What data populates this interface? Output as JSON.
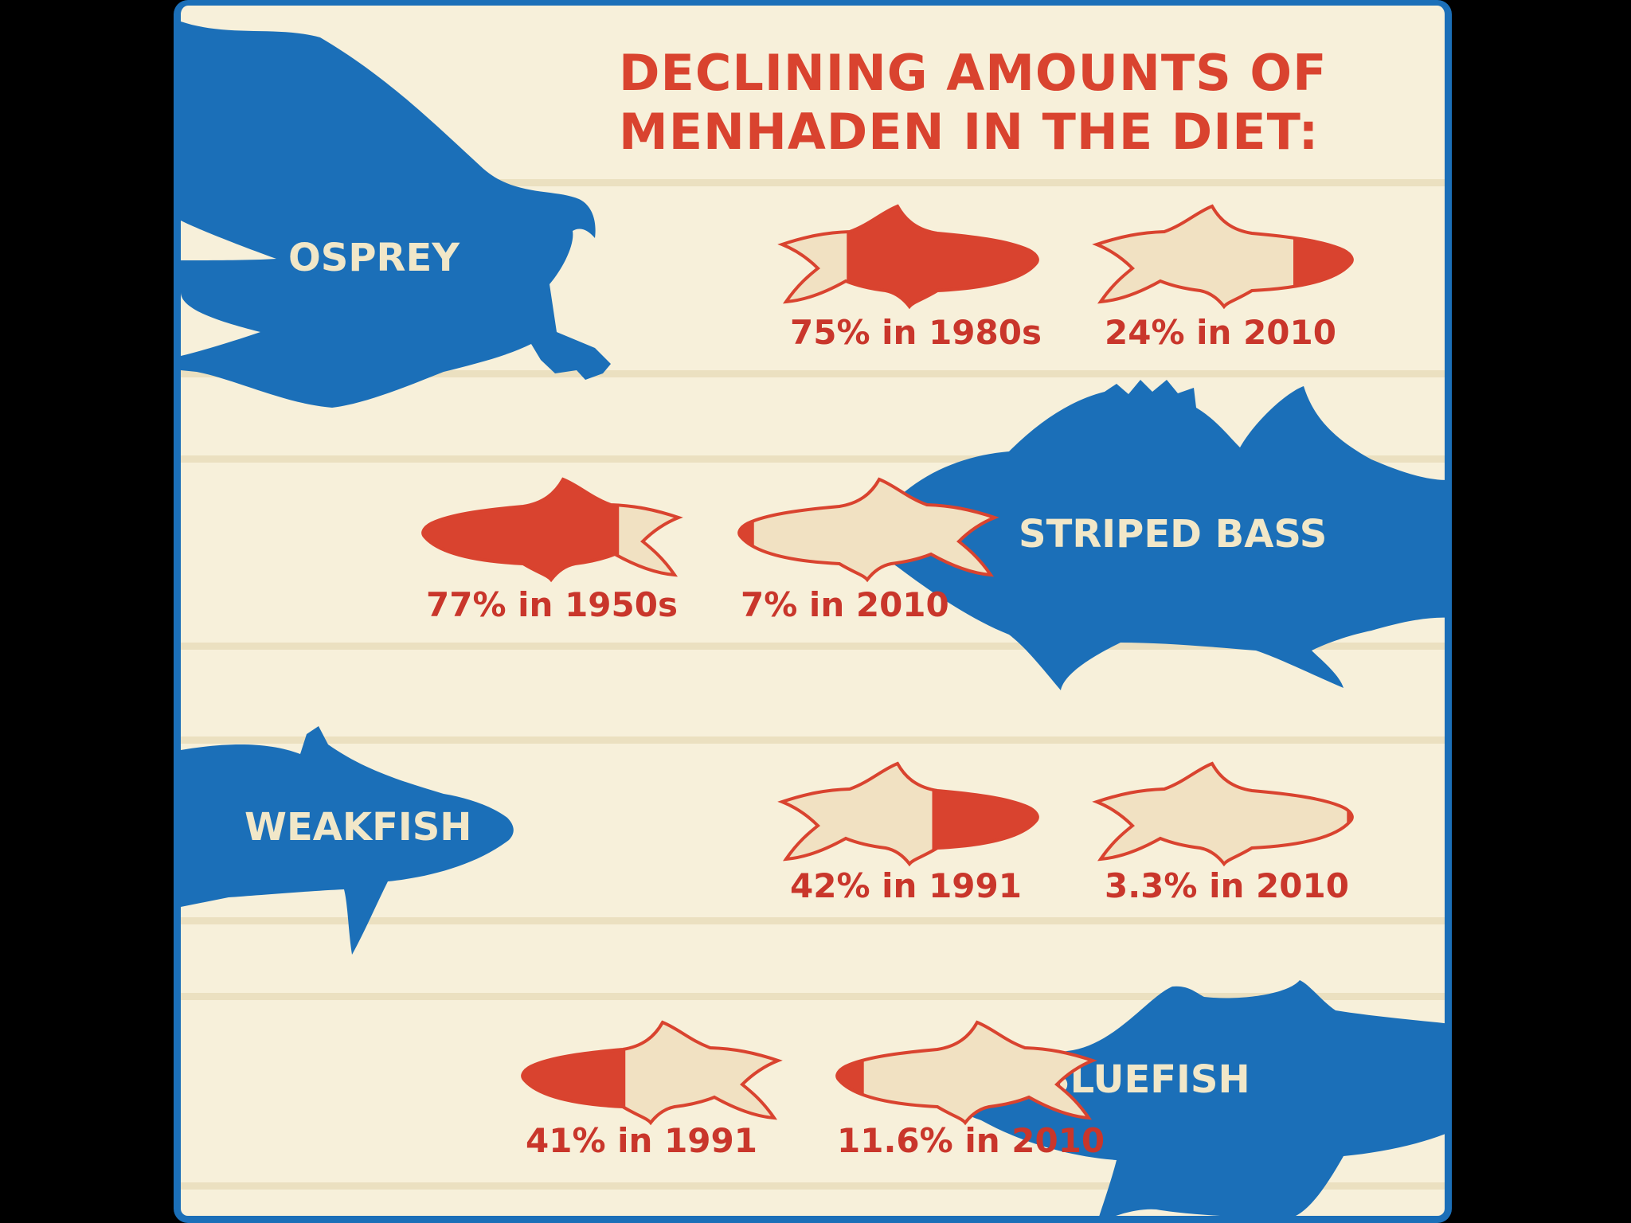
{
  "title": "DECLINING AMOUNTS OF\nMENHADEN IN THE DIET:",
  "colors": {
    "background": "#f7f0da",
    "frame": "#1b6fb8",
    "menhaden_fill": "#d9432f",
    "menhaden_body": "#f1e1c2",
    "predator": "#1b6fb8",
    "label_red": "#c9362b",
    "predator_label": "#f1e7c8"
  },
  "chart_data": {
    "type": "bar",
    "title": "DECLINING AMOUNTS OF MENHADEN IN THE DIET:",
    "unit": "%",
    "groups": [
      {
        "predator": "OSPREY",
        "icon": "osprey-icon",
        "points": [
          {
            "label": "75% in 1980s",
            "value": 75,
            "period": "1980s"
          },
          {
            "label": "24% in 2010",
            "value": 24,
            "period": "2010"
          }
        ]
      },
      {
        "predator": "STRIPED BASS",
        "icon": "striped-bass-icon",
        "points": [
          {
            "label": "77% in 1950s",
            "value": 77,
            "period": "1950s"
          },
          {
            "label": "7% in 2010",
            "value": 7,
            "period": "2010"
          }
        ]
      },
      {
        "predator": "WEAKFISH",
        "icon": "weakfish-icon",
        "points": [
          {
            "label": "42% in 1991",
            "value": 42,
            "period": "1991"
          },
          {
            "label": "3.3% in 2010",
            "value": 3.3,
            "period": "2010"
          }
        ]
      },
      {
        "predator": "BLUEFISH",
        "icon": "bluefish-icon",
        "points": [
          {
            "label": "41% in 1991",
            "value": 41,
            "period": "1991"
          },
          {
            "label": "11.6% in 2010",
            "value": 11.6,
            "period": "2010"
          }
        ]
      }
    ]
  }
}
